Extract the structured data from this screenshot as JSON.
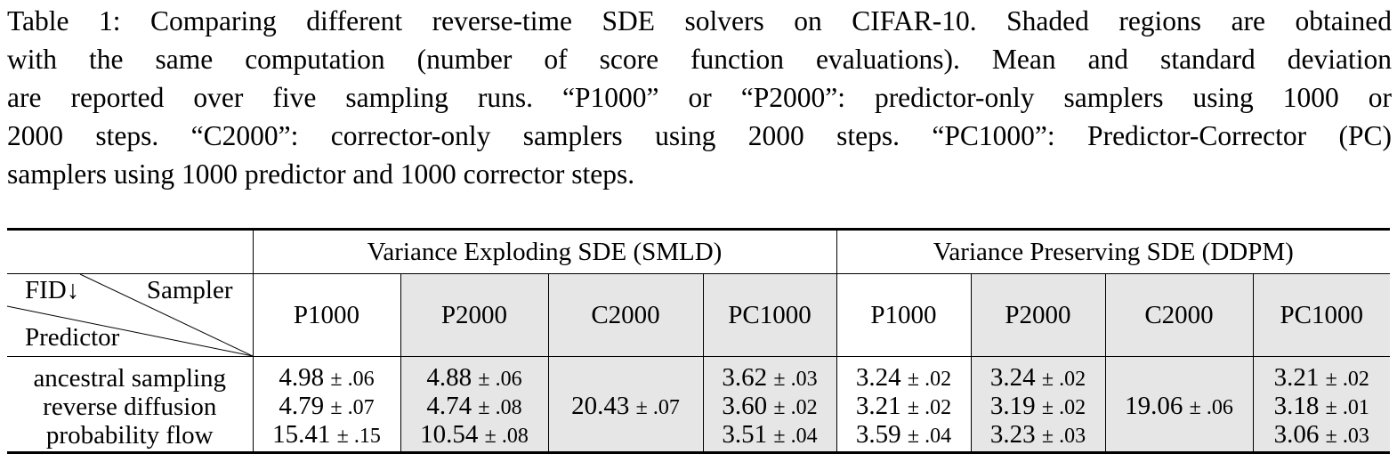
{
  "caption": {
    "lines": [
      "Table 1: Comparing different reverse-time SDE solvers on CIFAR-10. Shaded regions are obtained",
      "with the same computation (number of score function evaluations). Mean and standard deviation",
      "are reported over five sampling runs. “P1000” or “P2000”: predictor-only samplers using 1000 or",
      "2000 steps. “C2000”: corrector-only samplers using 2000 steps. “PC1000”: Predictor-Corrector (PC)",
      "samplers using 1000 predictor and 1000 corrector steps."
    ]
  },
  "table": {
    "groups": [
      "Variance Exploding SDE (SMLD)",
      "Variance Preserving SDE (DDPM)"
    ],
    "corner": {
      "fid": "FID↓",
      "sampler": "Sampler",
      "predictor": "Predictor"
    },
    "columns": [
      "P1000",
      "P2000",
      "C2000",
      "PC1000",
      "P1000",
      "P2000",
      "C2000",
      "PC1000"
    ],
    "rows": [
      {
        "label": "ancestral sampling",
        "cells": [
          {
            "v": "4.98",
            "pm": "± .06",
            "bold": false
          },
          {
            "v": "4.88",
            "pm": "± .06",
            "bold": false
          },
          {
            "v": "",
            "pm": "",
            "bold": false
          },
          {
            "v": "3.62",
            "pm": "± .03",
            "bold": true
          },
          {
            "v": "3.24",
            "pm": "± .02",
            "bold": false
          },
          {
            "v": "3.24",
            "pm": "± .02",
            "bold": false
          },
          {
            "v": "",
            "pm": "",
            "bold": false
          },
          {
            "v": "3.21",
            "pm": "± .02",
            "bold": true
          }
        ]
      },
      {
        "label": "reverse diffusion",
        "cells": [
          {
            "v": "4.79",
            "pm": "± .07",
            "bold": false
          },
          {
            "v": "4.74",
            "pm": "± .08",
            "bold": false
          },
          {
            "v": "20.43",
            "pm": "± .07",
            "bold": false
          },
          {
            "v": "3.60",
            "pm": "± .02",
            "bold": true
          },
          {
            "v": "3.21",
            "pm": "± .02",
            "bold": false
          },
          {
            "v": "3.19",
            "pm": "± .02",
            "bold": false
          },
          {
            "v": "19.06",
            "pm": "± .06",
            "bold": false
          },
          {
            "v": "3.18",
            "pm": "± .01",
            "bold": true
          }
        ]
      },
      {
        "label": "probability flow",
        "cells": [
          {
            "v": "15.41",
            "pm": "± .15",
            "bold": false
          },
          {
            "v": "10.54",
            "pm": "± .08",
            "bold": false
          },
          {
            "v": "",
            "pm": "",
            "bold": false
          },
          {
            "v": "3.51",
            "pm": "± .04",
            "bold": true
          },
          {
            "v": "3.59",
            "pm": "± .04",
            "bold": false
          },
          {
            "v": "3.23",
            "pm": "± .03",
            "bold": false
          },
          {
            "v": "",
            "pm": "",
            "bold": false
          },
          {
            "v": "3.06",
            "pm": "± .03",
            "bold": true
          }
        ]
      }
    ]
  }
}
